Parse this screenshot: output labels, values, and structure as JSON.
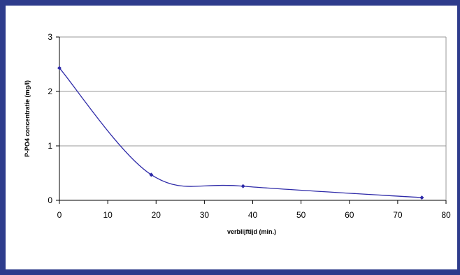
{
  "colors": {
    "frame": "#2e3c8c",
    "line": "#2e2aa8",
    "grid": "#999999"
  },
  "chart_data": {
    "type": "line",
    "title": "",
    "xlabel": "verblijftijd (min.)",
    "ylabel": "P-PO4 concentratie (mg/l)",
    "xlim": [
      0,
      80
    ],
    "ylim": [
      0,
      3
    ],
    "xticks": [
      0,
      10,
      20,
      30,
      40,
      50,
      60,
      70,
      80
    ],
    "yticks": [
      0,
      1,
      2,
      3
    ],
    "grid": "horizontal",
    "legend": "none",
    "smooth": true,
    "marker": "diamond",
    "series": [
      {
        "x": [
          0,
          19,
          38,
          75
        ],
        "y": [
          2.43,
          0.47,
          0.26,
          0.05
        ]
      }
    ]
  }
}
